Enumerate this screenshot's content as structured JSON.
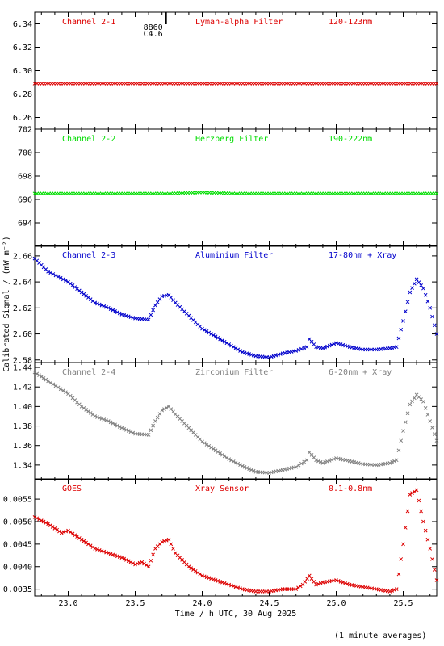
{
  "chart_data": {
    "type": "scatter",
    "xlabel": "Time / h UTC, 30 Aug 2025",
    "ylabel": "Calibrated Signal / (mW m⁻²)",
    "xlim": [
      22.75,
      25.75
    ],
    "xticks": [
      "23.0",
      "23.5",
      "24.0",
      "24.5",
      "25.0",
      "25.5"
    ],
    "footnote": "(1 minute averages)",
    "annotation": {
      "line1": "8860",
      "line2": "C4.6",
      "x": 23.73
    },
    "panels": [
      {
        "channel": "Channel 2-1",
        "filter": "Lyman-alpha Filter",
        "band": "120-123nm",
        "color": "#dd0000",
        "ylim": [
          6.25,
          6.35
        ],
        "yticks": [
          "6.26",
          "6.28",
          "6.30",
          "6.32",
          "6.34"
        ],
        "series": [
          {
            "name": "Channel 2-1",
            "x": [
              22.75,
              23.0,
              23.25,
              23.5,
              23.75,
              24.0,
              24.25,
              24.5,
              24.75,
              25.0,
              25.25,
              25.5,
              25.75
            ],
            "y": [
              6.289,
              6.289,
              6.289,
              6.289,
              6.289,
              6.289,
              6.289,
              6.289,
              6.289,
              6.289,
              6.289,
              6.289,
              6.289
            ]
          }
        ]
      },
      {
        "channel": "Channel 2-2",
        "filter": "Herzberg Filter",
        "band": "190-222nm",
        "color": "#00dd00",
        "ylim": [
          692,
          702
        ],
        "yticks": [
          "694",
          "696",
          "698",
          "700",
          "702"
        ],
        "series": [
          {
            "name": "Channel 2-2",
            "x": [
              22.75,
              23.0,
              23.25,
              23.5,
              23.75,
              24.0,
              24.25,
              24.5,
              24.75,
              25.0,
              25.25,
              25.5,
              25.75
            ],
            "y": [
              696.5,
              696.5,
              696.5,
              696.5,
              696.5,
              696.6,
              696.5,
              696.5,
              696.5,
              696.5,
              696.5,
              696.5,
              696.5
            ]
          }
        ]
      },
      {
        "channel": "Channel 2-3",
        "filter": "Aluminium Filter",
        "band": "17-80nm + Xray",
        "color": "#0000cc",
        "ylim": [
          2.578,
          2.668
        ],
        "yticks": [
          "2.58",
          "2.60",
          "2.62",
          "2.64",
          "2.66"
        ],
        "series": [
          {
            "name": "Channel 2-3",
            "x": [
              22.75,
              22.85,
              23.0,
              23.1,
              23.2,
              23.3,
              23.4,
              23.5,
              23.6,
              23.65,
              23.7,
              23.75,
              23.8,
              23.9,
              24.0,
              24.1,
              24.2,
              24.3,
              24.4,
              24.5,
              24.6,
              24.7,
              24.78,
              24.8,
              24.85,
              24.9,
              25.0,
              25.1,
              25.2,
              25.3,
              25.4,
              25.45,
              25.5,
              25.55,
              25.6,
              25.65,
              25.7,
              25.75
            ],
            "y": [
              2.658,
              2.648,
              2.64,
              2.632,
              2.624,
              2.62,
              2.615,
              2.612,
              2.611,
              2.622,
              2.629,
              2.63,
              2.624,
              2.614,
              2.604,
              2.598,
              2.592,
              2.586,
              2.583,
              2.582,
              2.585,
              2.587,
              2.59,
              2.596,
              2.59,
              2.589,
              2.593,
              2.59,
              2.588,
              2.588,
              2.589,
              2.59,
              2.61,
              2.632,
              2.642,
              2.635,
              2.62,
              2.6
            ]
          }
        ]
      },
      {
        "channel": "Channel 2-4",
        "filter": "Zirconium Filter",
        "band": "6-20nm + Xray",
        "color": "#808080",
        "ylim": [
          1.325,
          1.445
        ],
        "yticks": [
          "1.34",
          "1.36",
          "1.38",
          "1.40",
          "1.42",
          "1.44"
        ],
        "series": [
          {
            "name": "Channel 2-4",
            "x": [
              22.75,
              22.85,
              23.0,
              23.1,
              23.2,
              23.3,
              23.4,
              23.5,
              23.6,
              23.65,
              23.7,
              23.75,
              23.8,
              23.9,
              24.0,
              24.1,
              24.2,
              24.3,
              24.4,
              24.5,
              24.6,
              24.7,
              24.78,
              24.8,
              24.85,
              24.9,
              25.0,
              25.1,
              25.2,
              25.3,
              25.4,
              25.45,
              25.5,
              25.55,
              25.6,
              25.65,
              25.7,
              25.75
            ],
            "y": [
              1.435,
              1.426,
              1.413,
              1.4,
              1.39,
              1.385,
              1.378,
              1.372,
              1.371,
              1.385,
              1.396,
              1.4,
              1.392,
              1.378,
              1.364,
              1.355,
              1.346,
              1.339,
              1.333,
              1.332,
              1.335,
              1.338,
              1.345,
              1.353,
              1.345,
              1.342,
              1.347,
              1.344,
              1.341,
              1.34,
              1.342,
              1.345,
              1.375,
              1.402,
              1.412,
              1.405,
              1.385,
              1.365
            ]
          }
        ]
      },
      {
        "channel": "GOES",
        "filter": "Xray Sensor",
        "band": "0.1-0.8nm",
        "color": "#dd0000",
        "ylim": [
          0.00335,
          0.00595
        ],
        "yticks": [
          "0.0035",
          "0.0040",
          "0.0045",
          "0.0050",
          "0.0055"
        ],
        "series": [
          {
            "name": "GOES",
            "x": [
              22.75,
              22.85,
              22.95,
              23.0,
              23.1,
              23.2,
              23.3,
              23.4,
              23.5,
              23.55,
              23.6,
              23.65,
              23.7,
              23.75,
              23.8,
              23.9,
              24.0,
              24.1,
              24.2,
              24.3,
              24.4,
              24.5,
              24.6,
              24.7,
              24.75,
              24.8,
              24.85,
              24.9,
              25.0,
              25.1,
              25.2,
              25.3,
              25.4,
              25.45,
              25.5,
              25.55,
              25.6,
              25.65,
              25.7,
              25.75
            ],
            "y": [
              0.0051,
              0.00495,
              0.00475,
              0.0048,
              0.0046,
              0.0044,
              0.0043,
              0.0042,
              0.00405,
              0.0041,
              0.004,
              0.0044,
              0.00455,
              0.0046,
              0.0043,
              0.004,
              0.0038,
              0.0037,
              0.0036,
              0.0035,
              0.00345,
              0.00345,
              0.0035,
              0.0035,
              0.0036,
              0.0038,
              0.0036,
              0.00365,
              0.0037,
              0.0036,
              0.00355,
              0.0035,
              0.00345,
              0.0035,
              0.0045,
              0.0056,
              0.0057,
              0.005,
              0.0044,
              0.0037
            ]
          }
        ]
      }
    ]
  }
}
